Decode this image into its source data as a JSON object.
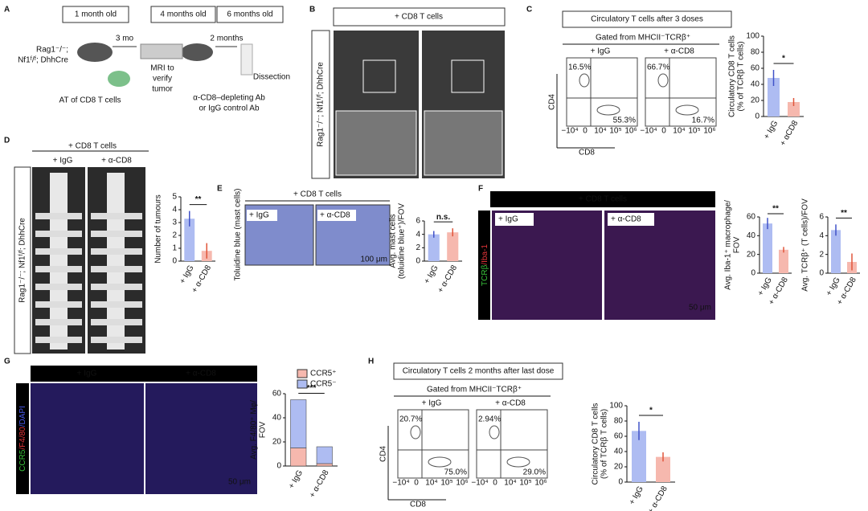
{
  "figure": {
    "A": {
      "letter": "A",
      "steps": [
        "1 month old",
        "4 months old",
        "6 months old"
      ],
      "mouse": [
        "Rag1⁻/⁻;",
        "Nf1ᶠ/ᶠ; DhhCre"
      ],
      "arrow1": "3 mo",
      "arrow2": "2 months",
      "mri": [
        "MRI to",
        "verify",
        "tumor"
      ],
      "transfer": "AT of CD8 T cells",
      "antibody": [
        "α-CD8–depleting Ab",
        "or IgG control Ab"
      ],
      "dissection": "Dissection"
    },
    "B": {
      "letter": "B",
      "header": "+ CD8 T cells",
      "side": "Rag1⁻/⁻; Nf1ᶠ/ᶠ; DhhCre"
    },
    "C": {
      "letter": "C",
      "title": "Circulatory T cells after 3 doses",
      "gate": "Gated from MHCII⁻TCRβ⁺",
      "groups": [
        "+ IgG",
        "+ α-CD8"
      ],
      "quadrants": [
        [
          "16.5%",
          "55.3%"
        ],
        [
          "66.7%",
          "16.7%"
        ]
      ],
      "yaxis": "CD4",
      "xaxis": "CD8",
      "flow_ticks": [
        "−10⁴",
        "0",
        "10⁴",
        "10⁵",
        "10⁶"
      ]
    },
    "D": {
      "letter": "D",
      "header": "+ CD8 T cells",
      "groups": [
        "+ IgG",
        "+ α-CD8"
      ],
      "side": "Rag1⁻/⁻; Nf1ᶠ/ᶠ; DhhCre"
    },
    "E": {
      "letter": "E",
      "header": "+ CD8 T cells",
      "groups": [
        "+ IgG",
        "+ α-CD8"
      ],
      "side": "Toluidine blue (mast cells)",
      "scale": "100 μm"
    },
    "F": {
      "letter": "F",
      "header": "+ CD8 T cells",
      "groups": [
        "+ IgG",
        "+ α-CD8"
      ],
      "side": [
        {
          "text": "TCRβ",
          "color": "#39c23b"
        },
        {
          "text": "/Iba-1",
          "color": "#e8363a"
        }
      ],
      "scale": "50 μm"
    },
    "G": {
      "letter": "G",
      "groups": [
        "+ IgG",
        "+ α-CD8"
      ],
      "side": [
        {
          "text": "CCR5",
          "color": "#39c23b"
        },
        {
          "text": "/F4/80",
          "color": "#e8363a"
        },
        {
          "text": "/DAPI",
          "color": "#4a5bf0"
        }
      ],
      "scale": "50 μm"
    },
    "H": {
      "letter": "H",
      "title": "Circulatory T cells 2 months after last dose",
      "gate": "Gated from MHCII⁻TCRβ⁺",
      "groups": [
        "+ IgG",
        "+ α-CD8"
      ],
      "quadrants": [
        [
          "20.7%",
          "75.0%"
        ],
        [
          "2.94%",
          "29.0%"
        ]
      ],
      "yaxis": "CD4",
      "xaxis": "CD8",
      "flow_ticks": [
        "−10⁴",
        "0",
        "10⁴",
        "10⁵",
        "10⁶"
      ]
    }
  },
  "chart_data": [
    {
      "type": "bar",
      "ylabel": [
        "Circulatory CD8 T cells",
        "(% of TCRβ T cells)"
      ],
      "categories": [
        "+ IgG",
        "+ αCD8"
      ],
      "values": [
        48,
        18
      ],
      "errors": [
        10,
        5
      ],
      "colors": [
        "#aebcf2",
        "#f6b8ae"
      ],
      "ylim": [
        0,
        100
      ],
      "yticks": [
        0,
        20,
        40,
        60,
        80,
        100
      ],
      "significance": "*"
    },
    {
      "type": "bar",
      "ylabel": [
        "Number of tumours"
      ],
      "categories": [
        "+ IgG",
        "+ α-CD8"
      ],
      "values": [
        3.3,
        0.8
      ],
      "errors": [
        0.6,
        0.6
      ],
      "colors": [
        "#aebcf2",
        "#f6b8ae"
      ],
      "ylim": [
        0,
        5
      ],
      "yticks": [
        0,
        1,
        2,
        3,
        4,
        5
      ],
      "significance": "**"
    },
    {
      "type": "bar",
      "ylabel": [
        "Avg. mast cells",
        "(toluidine blue⁺)/FOV"
      ],
      "categories": [
        "+ IgG",
        "+ α-CD8"
      ],
      "values": [
        4.0,
        4.3
      ],
      "errors": [
        0.5,
        0.6
      ],
      "colors": [
        "#aebcf2",
        "#f6b8ae"
      ],
      "ylim": [
        0,
        6
      ],
      "yticks": [
        0,
        2,
        4,
        6
      ],
      "significance": "n.s."
    },
    {
      "type": "bar",
      "ylabel": [
        "Avg. Iba-1⁺ macrophage/",
        "FOV"
      ],
      "categories": [
        "+ IgG",
        "+ α-CD8"
      ],
      "values": [
        53,
        25
      ],
      "errors": [
        6,
        3
      ],
      "colors": [
        "#aebcf2",
        "#f6b8ae"
      ],
      "ylim": [
        0,
        60
      ],
      "yticks": [
        0,
        20,
        40,
        60
      ],
      "significance": "**"
    },
    {
      "type": "bar",
      "ylabel": [
        "Avg. TCRβ⁺ (T cells)/FOV"
      ],
      "categories": [
        "+ IgG",
        "+ α-CD8"
      ],
      "values": [
        4.6,
        1.2
      ],
      "errors": [
        0.6,
        0.9
      ],
      "colors": [
        "#aebcf2",
        "#f6b8ae"
      ],
      "ylim": [
        0,
        6
      ],
      "yticks": [
        0,
        2,
        4,
        6
      ],
      "significance": "**"
    },
    {
      "type": "stacked",
      "ylabel": [
        "Avg. F4/80⁺ Mφ/",
        "FOV"
      ],
      "categories": [
        "+ IgG",
        "+ α-CD8"
      ],
      "series": [
        {
          "name": "CCR5⁺",
          "color": "#f6b8ae",
          "values": [
            15,
            2
          ]
        },
        {
          "name": "CCR5⁻",
          "color": "#aebcf2",
          "values": [
            40,
            14
          ]
        }
      ],
      "ylim": [
        0,
        60
      ],
      "yticks": [
        0,
        20,
        40,
        60
      ],
      "significance": "***"
    },
    {
      "type": "bar",
      "ylabel": [
        "Circulatory CD8 T cells",
        "(% of TCRβ T cells)"
      ],
      "categories": [
        "+ IgG",
        "+ α-CD8"
      ],
      "values": [
        67,
        33
      ],
      "errors": [
        12,
        6
      ],
      "colors": [
        "#aebcf2",
        "#f6b8ae"
      ],
      "ylim": [
        0,
        100
      ],
      "yticks": [
        0,
        20,
        40,
        60,
        80,
        100
      ],
      "significance": "*"
    }
  ]
}
